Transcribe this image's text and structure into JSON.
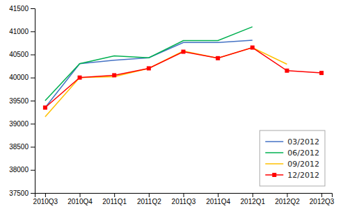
{
  "chart_data": {
    "type": "line",
    "categories": [
      "2010Q3",
      "2010Q4",
      "2011Q1",
      "2011Q2",
      "2011Q3",
      "2011Q4",
      "2012Q1",
      "2012Q2",
      "2012Q3"
    ],
    "series": [
      {
        "name": "03/2012",
        "color": "#4472C4",
        "values": [
          39350,
          40300,
          40375,
          40430,
          40760,
          40760,
          40810,
          null,
          null
        ]
      },
      {
        "name": "06/2012",
        "color": "#00B050",
        "values": [
          39500,
          40300,
          40470,
          40430,
          40800,
          40800,
          41100,
          null,
          null
        ]
      },
      {
        "name": "09/2012",
        "color": "#FFC000",
        "values": [
          39150,
          40000,
          40020,
          40200,
          40575,
          40420,
          40650,
          40290,
          null
        ]
      },
      {
        "name": "12/2012",
        "color": "#FF0000",
        "marker": "square",
        "values": [
          39350,
          40000,
          40050,
          40200,
          40560,
          40420,
          40650,
          40150,
          40100
        ]
      }
    ],
    "ylim": [
      37500,
      41500
    ],
    "yticks": [
      37500,
      38000,
      38500,
      39000,
      39500,
      40000,
      40500,
      41000,
      41500
    ],
    "grid": false,
    "legend": "lower right"
  }
}
